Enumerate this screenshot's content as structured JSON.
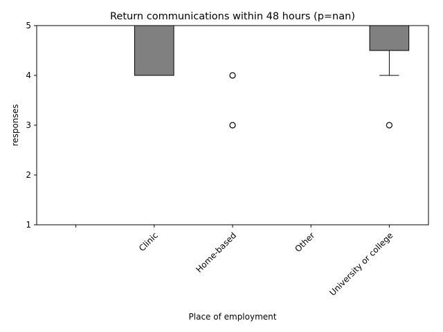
{
  "chart_data": {
    "type": "box",
    "title": "Return communications within 48 hours (p=nan)",
    "xlabel": "Place of employment",
    "ylabel": "responses",
    "ylim": [
      1,
      5
    ],
    "yticks": [
      1,
      2,
      3,
      4,
      5
    ],
    "categories": [
      "",
      "Clinic",
      "Home-based",
      "Other",
      "University or college"
    ],
    "boxes": [
      {
        "category": "",
        "empty": true
      },
      {
        "category": "Clinic",
        "q1": 4,
        "median": 4,
        "q3": 5,
        "whisker_low": 4,
        "whisker_high": 5,
        "outliers": []
      },
      {
        "category": "Home-based",
        "q1": 5,
        "median": 5,
        "q3": 5,
        "whisker_low": 5,
        "whisker_high": 5,
        "outliers": [
          4,
          3
        ]
      },
      {
        "category": "Other",
        "q1": 5,
        "median": 5,
        "q3": 5,
        "whisker_low": 5,
        "whisker_high": 5,
        "outliers": []
      },
      {
        "category": "University or college",
        "q1": 4.5,
        "median": 5,
        "q3": 5,
        "whisker_low": 4,
        "whisker_high": 5,
        "outliers": [
          3
        ]
      }
    ],
    "box_color": "#808080",
    "grid": false,
    "legend": "none"
  }
}
